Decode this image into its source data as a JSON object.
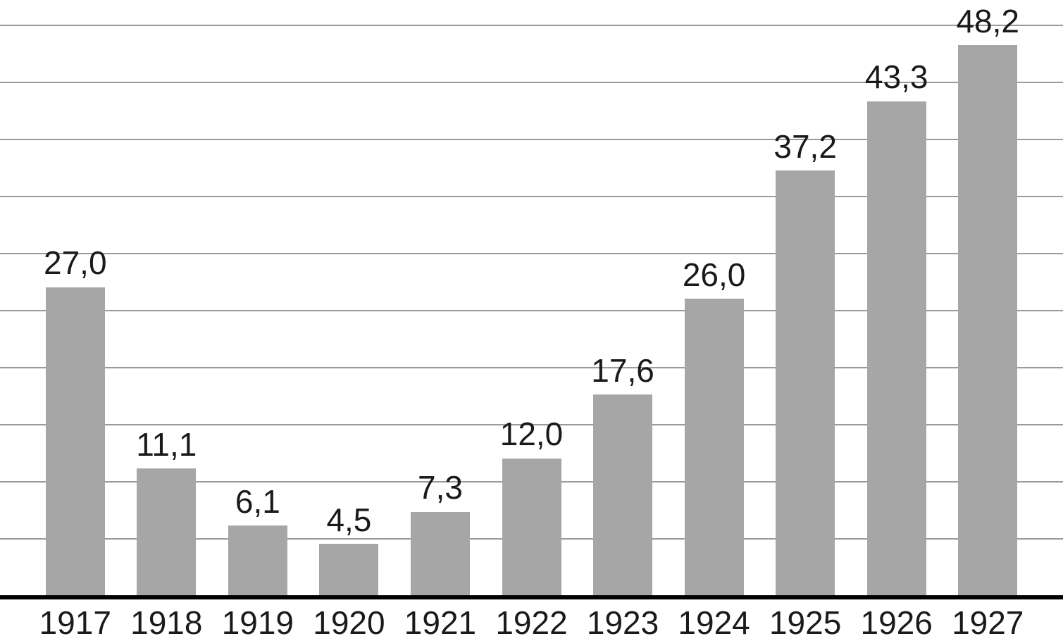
{
  "chart_data": {
    "type": "bar",
    "title": "",
    "xlabel": "",
    "ylabel": "",
    "categories": [
      "1917",
      "1918",
      "1919",
      "1920",
      "1921",
      "1922",
      "1923",
      "1924",
      "1925",
      "1926",
      "1927"
    ],
    "values": [
      27.0,
      11.1,
      6.1,
      4.5,
      7.3,
      12.0,
      17.6,
      26.0,
      37.2,
      43.3,
      48.2
    ],
    "value_labels": [
      "27,0",
      "11,1",
      "6,1",
      "4,5",
      "7,3",
      "12,0",
      "17,6",
      "26,0",
      "37,2",
      "43,3",
      "48,2"
    ],
    "ylim": [
      0,
      50
    ],
    "gridline_step": 5,
    "grid": true,
    "legend": "none",
    "decimal_separator": ",",
    "colors": {
      "bar": "#a6a6a6",
      "gridline": "#9a9a9a",
      "baseline": "#000000",
      "text": "#1a1a1a",
      "background": "#ffffff"
    }
  }
}
